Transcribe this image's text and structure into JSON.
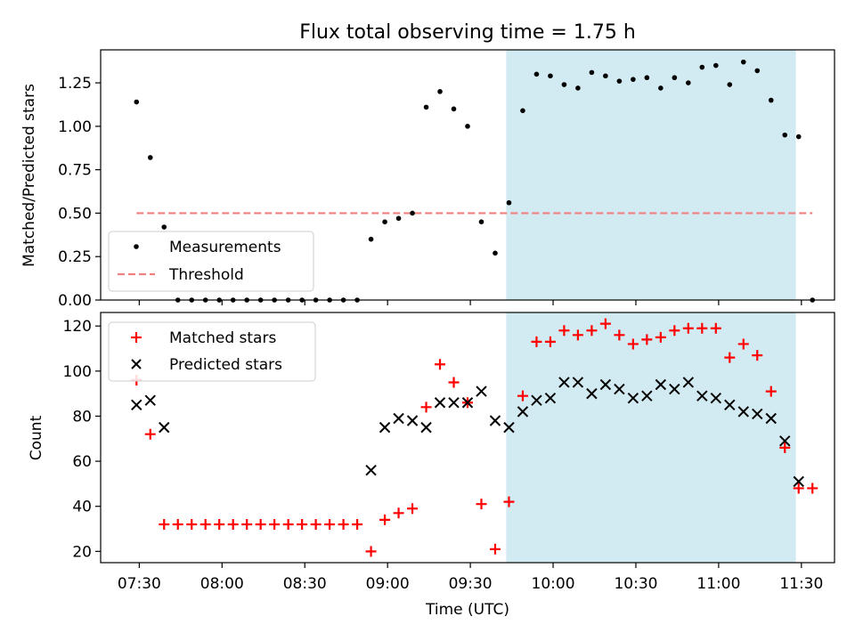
{
  "chart_data": [
    {
      "type": "scatter",
      "title": "Flux total observing time = 1.75 h",
      "xlabel": "",
      "ylabel": "Matched/Predicted stars",
      "xlim": [
        "07:16",
        "11:42"
      ],
      "ylim": [
        0,
        1.44
      ],
      "yticks": [
        0.0,
        0.25,
        0.5,
        0.75,
        1.0,
        1.25
      ],
      "ytick_labels": [
        "0.00",
        "0.25",
        "0.50",
        "0.75",
        "1.00",
        "1.25"
      ],
      "shaded_region": {
        "from": "09:43",
        "to": "11:28",
        "color": "#add8e6"
      },
      "legend": {
        "placement": "lower-left",
        "entries": [
          "Measurements",
          "Threshold"
        ]
      },
      "series": [
        {
          "name": "Measurements",
          "marker": "dot",
          "color": "#000000",
          "x": [
            "07:29",
            "07:34",
            "07:39",
            "07:44",
            "07:49",
            "07:54",
            "07:59",
            "08:04",
            "08:09",
            "08:14",
            "08:19",
            "08:24",
            "08:29",
            "08:34",
            "08:39",
            "08:44",
            "08:49",
            "08:54",
            "08:59",
            "09:04",
            "09:09",
            "09:14",
            "09:19",
            "09:24",
            "09:29",
            "09:34",
            "09:39",
            "09:44",
            "09:49",
            "09:54",
            "09:59",
            "10:04",
            "10:09",
            "10:14",
            "10:19",
            "10:24",
            "10:29",
            "10:34",
            "10:39",
            "10:44",
            "10:49",
            "10:54",
            "10:59",
            "11:04",
            "11:09",
            "11:14",
            "11:19",
            "11:24",
            "11:29",
            "11:34"
          ],
          "y": [
            1.14,
            0.82,
            0.42,
            0,
            0,
            0,
            0,
            0,
            0,
            0,
            0,
            0,
            0,
            0,
            0,
            0,
            0,
            0.35,
            0.45,
            0.47,
            0.5,
            1.11,
            1.2,
            1.1,
            1.0,
            0.45,
            0.27,
            0.56,
            1.09,
            1.3,
            1.29,
            1.24,
            1.22,
            1.31,
            1.29,
            1.26,
            1.27,
            1.28,
            1.22,
            1.28,
            1.25,
            1.34,
            1.35,
            1.24,
            1.37,
            1.32,
            1.15,
            0.95,
            0.94,
            0
          ]
        },
        {
          "name": "Threshold",
          "style": "dashed",
          "color": "#f08080",
          "x": [
            "07:29",
            "11:34"
          ],
          "y": [
            0.5,
            0.5
          ]
        }
      ]
    },
    {
      "type": "scatter",
      "title": "",
      "xlabel": "Time (UTC)",
      "ylabel": "Count",
      "xlim": [
        "07:16",
        "11:42"
      ],
      "ylim": [
        15,
        126
      ],
      "yticks": [
        20,
        40,
        60,
        80,
        100,
        120
      ],
      "ytick_labels": [
        "20",
        "40",
        "60",
        "80",
        "100",
        "120"
      ],
      "xticks": [
        "07:30",
        "08:00",
        "08:30",
        "09:00",
        "09:30",
        "10:00",
        "10:30",
        "11:00",
        "11:30"
      ],
      "shaded_region": {
        "from": "09:43",
        "to": "11:28",
        "color": "#add8e6"
      },
      "legend": {
        "placement": "top-left",
        "entries": [
          "Matched stars",
          "Predicted stars"
        ]
      },
      "series": [
        {
          "name": "Matched stars",
          "marker": "plus",
          "color": "#ff0000",
          "x": [
            "07:29",
            "07:34",
            "07:39",
            "07:44",
            "07:49",
            "07:54",
            "07:59",
            "08:04",
            "08:09",
            "08:14",
            "08:19",
            "08:24",
            "08:29",
            "08:34",
            "08:39",
            "08:44",
            "08:49",
            "08:54",
            "08:59",
            "09:04",
            "09:09",
            "09:14",
            "09:19",
            "09:24",
            "09:29",
            "09:34",
            "09:39",
            "09:44",
            "09:49",
            "09:54",
            "09:59",
            "10:04",
            "10:09",
            "10:14",
            "10:19",
            "10:24",
            "10:29",
            "10:34",
            "10:39",
            "10:44",
            "10:49",
            "10:54",
            "10:59",
            "11:04",
            "11:09",
            "11:14",
            "11:19",
            "11:24",
            "11:29",
            "11:34"
          ],
          "y": [
            96,
            72,
            32,
            32,
            32,
            32,
            32,
            32,
            32,
            32,
            32,
            32,
            32,
            32,
            32,
            32,
            32,
            20,
            34,
            37,
            39,
            84,
            103,
            95,
            86,
            41,
            21,
            42,
            89,
            113,
            113,
            118,
            116,
            118,
            121,
            116,
            112,
            114,
            115,
            118,
            119,
            119,
            119,
            106,
            112,
            107,
            91,
            66,
            48,
            48
          ]
        },
        {
          "name": "Predicted stars",
          "marker": "x",
          "color": "#000000",
          "x": [
            "07:29",
            "07:34",
            "07:39",
            "08:54",
            "08:59",
            "09:04",
            "09:09",
            "09:14",
            "09:19",
            "09:24",
            "09:29",
            "09:34",
            "09:39",
            "09:44",
            "09:49",
            "09:54",
            "09:59",
            "10:04",
            "10:09",
            "10:14",
            "10:19",
            "10:24",
            "10:29",
            "10:34",
            "10:39",
            "10:44",
            "10:49",
            "10:54",
            "10:59",
            "11:04",
            "11:09",
            "11:14",
            "11:19",
            "11:24",
            "11:29"
          ],
          "y": [
            85,
            87,
            75,
            56,
            75,
            79,
            78,
            75,
            86,
            86,
            86,
            91,
            78,
            75,
            82,
            87,
            88,
            95,
            95,
            90,
            94,
            92,
            88,
            89,
            94,
            92,
            95,
            89,
            88,
            85,
            82,
            81,
            79,
            69,
            51
          ]
        }
      ]
    }
  ]
}
